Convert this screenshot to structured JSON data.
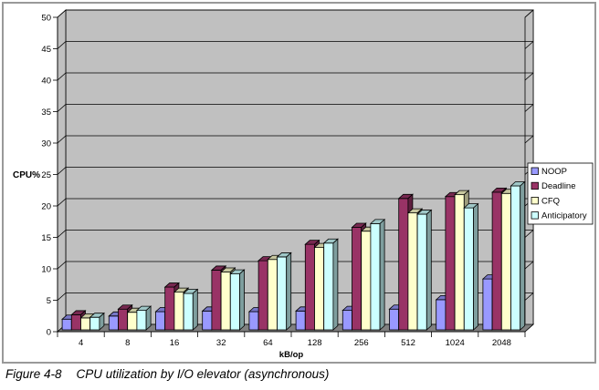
{
  "figure": {
    "caption_label": "Figure 4-8",
    "caption_title": "CPU utilization by I/O elevator (asynchronous)"
  },
  "chart_data": {
    "type": "bar",
    "style": "3d-clustered-column",
    "title": "",
    "xlabel": "kB/op",
    "ylabel": "CPU%",
    "ylim": [
      0,
      50
    ],
    "ytick_step": 5,
    "grid": true,
    "legend_position": "right",
    "wall_color": "#c0c0c0",
    "floor_color": "#808080",
    "plot_bg": "#ffffff",
    "categories": [
      "4",
      "8",
      "16",
      "32",
      "64",
      "128",
      "256",
      "512",
      "1024",
      "2048"
    ],
    "series": [
      {
        "name": "NOOP",
        "color": "#9999ff",
        "values": [
          1.7,
          2.2,
          2.9,
          3.0,
          2.9,
          3.0,
          3.1,
          3.3,
          4.8,
          8.1
        ]
      },
      {
        "name": "Deadline",
        "color": "#993366",
        "values": [
          2.4,
          3.3,
          6.8,
          9.5,
          11.0,
          13.6,
          16.3,
          20.9,
          21.2,
          21.9
        ]
      },
      {
        "name": "CFQ",
        "color": "#ffffcc",
        "values": [
          1.9,
          2.8,
          6.0,
          9.2,
          11.2,
          13.1,
          15.7,
          18.6,
          21.5,
          21.7
        ]
      },
      {
        "name": "Anticipatory",
        "color": "#ccffff",
        "values": [
          2.0,
          3.1,
          5.8,
          8.9,
          11.6,
          13.8,
          16.9,
          18.4,
          19.4,
          22.9
        ]
      }
    ]
  }
}
